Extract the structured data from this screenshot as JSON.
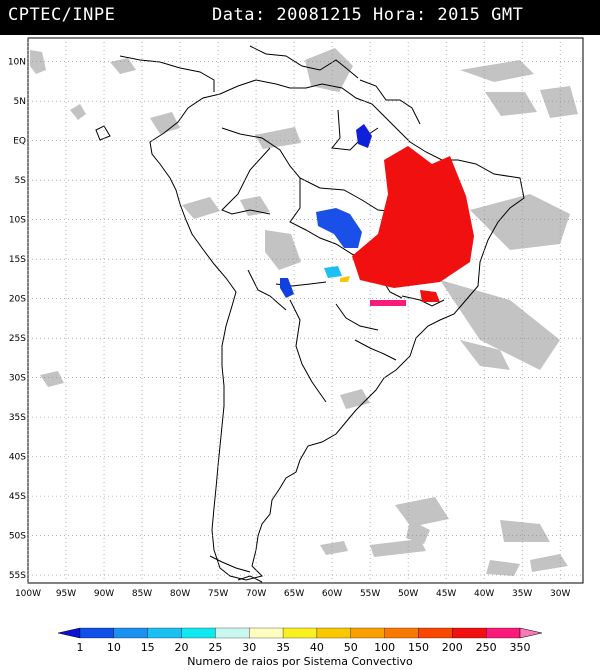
{
  "header": {
    "source": "CPTEC/INPE",
    "datetime": "Data: 20081215 Hora: 2015 GMT"
  },
  "axes": {
    "lat_labels": [
      "10N",
      "5N",
      "EQ",
      "5S",
      "10S",
      "15S",
      "20S",
      "25S",
      "30S",
      "35S",
      "40S",
      "45S",
      "50S",
      "55S"
    ],
    "lat_values": [
      10,
      5,
      0,
      -5,
      -10,
      -15,
      -20,
      -25,
      -30,
      -35,
      -40,
      -45,
      -50,
      -55
    ],
    "lon_labels": [
      "100W",
      "95W",
      "90W",
      "85W",
      "80W",
      "75W",
      "70W",
      "65W",
      "60W",
      "55W",
      "50W",
      "45W",
      "40W",
      "35W",
      "30W"
    ],
    "lon_values": [
      -100,
      -95,
      -90,
      -85,
      -80,
      -75,
      -70,
      -65,
      -60,
      -55,
      -50,
      -45,
      -40,
      -35,
      -30
    ],
    "lon_range": [
      -100,
      -27
    ],
    "lat_range": [
      -56,
      13
    ]
  },
  "colorbar": {
    "title": "Numero de raios por Sistema Convectivo",
    "ticks": [
      "1",
      "10",
      "15",
      "20",
      "25",
      "30",
      "35",
      "40",
      "50",
      "100",
      "150",
      "200",
      "250",
      "350"
    ],
    "colors": [
      "#0a10d8",
      "#1050e8",
      "#1a90f0",
      "#1cc0f0",
      "#10e8f0",
      "#c8f8f0",
      "#fefcc0",
      "#f8f020",
      "#f8c800",
      "#f8a000",
      "#f87800",
      "#f84800",
      "#f01010",
      "#fa1a7a",
      "#f878b8"
    ]
  },
  "colors": {
    "cloud_gray": "#bdbdbd",
    "coast": "#000000",
    "grid": "#888888"
  }
}
